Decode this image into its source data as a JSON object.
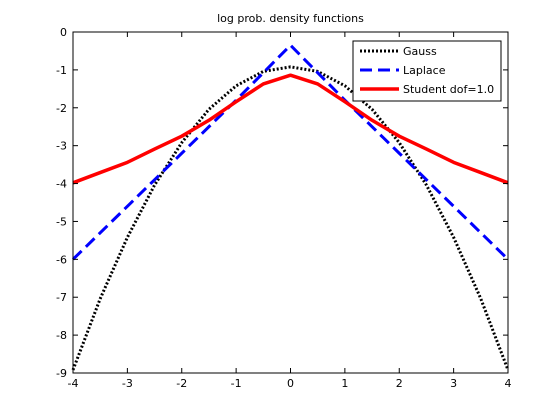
{
  "chart_data": {
    "type": "line",
    "title": "log prob. density functions",
    "xlabel": "",
    "ylabel": "",
    "xlim": [
      -4,
      4
    ],
    "ylim": [
      -9,
      0
    ],
    "x_ticks": [
      -4,
      -3,
      -2,
      -1,
      0,
      1,
      2,
      3,
      4
    ],
    "y_ticks": [
      0,
      -1,
      -2,
      -3,
      -4,
      -5,
      -6,
      -7,
      -8,
      -9
    ],
    "grid": false,
    "legend_position": "top-right",
    "series": [
      {
        "name": "Gauss",
        "color": "#000000",
        "style": "dotted",
        "x": [
          -4,
          -3.5,
          -3,
          -2.5,
          -2,
          -1.5,
          -1,
          -0.5,
          0,
          0.5,
          1,
          1.5,
          2,
          2.5,
          3,
          3.5,
          4
        ],
        "y": [
          -8.92,
          -7.04,
          -5.42,
          -4.04,
          -2.92,
          -2.04,
          -1.42,
          -1.04,
          -0.92,
          -1.04,
          -1.42,
          -2.04,
          -2.92,
          -4.04,
          -5.42,
          -7.04,
          -8.92
        ]
      },
      {
        "name": "Laplace",
        "color": "#0000ff",
        "style": "dashed",
        "x": [
          -4,
          -3,
          -2,
          -1,
          0,
          1,
          2,
          3,
          4
        ],
        "y": [
          -6.0,
          -4.6,
          -3.2,
          -1.8,
          -0.35,
          -1.8,
          -3.2,
          -4.6,
          -6.0
        ]
      },
      {
        "name": "Student dof=1.0",
        "color": "#ff0000",
        "style": "solid",
        "x": [
          -4,
          -3.5,
          -3,
          -2.5,
          -2,
          -1.5,
          -1,
          -0.5,
          0,
          0.5,
          1,
          1.5,
          2,
          2.5,
          3,
          3.5,
          4
        ],
        "y": [
          -3.98,
          -3.71,
          -3.44,
          -3.09,
          -2.75,
          -2.33,
          -1.84,
          -1.37,
          -1.14,
          -1.37,
          -1.84,
          -2.33,
          -2.75,
          -3.09,
          -3.44,
          -3.71,
          -3.98
        ]
      }
    ]
  }
}
